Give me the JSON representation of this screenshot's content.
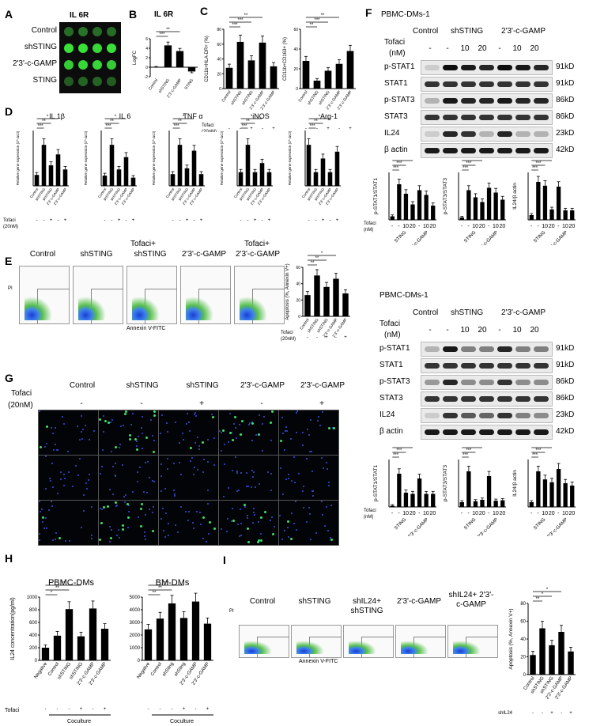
{
  "panels": {
    "A": {
      "letter": "A",
      "title": "IL 6R",
      "rows": [
        "Control",
        "shSTING",
        "2'3'-c-GAMP",
        "STING"
      ]
    },
    "B": {
      "letter": "B",
      "title": "IL 6R",
      "ylabel": "LogFC",
      "yticks": [
        "6",
        "4",
        "2",
        "0",
        "-2"
      ],
      "stars": [
        "***",
        "**",
        "*"
      ],
      "categories": [
        "Control",
        "shSTING",
        "2'3'-c-GAMP",
        "STING"
      ]
    },
    "C": {
      "letter": "C",
      "ylabel1": "CD11b+HLA-DR+ (%)",
      "ylabel2": "CD11b+CD163+ (%)",
      "yticks1": [
        "80",
        "60",
        "40",
        "20",
        "0"
      ],
      "yticks2": [
        "60",
        "40",
        "20",
        "0"
      ],
      "categories": [
        "Control",
        "shSTING",
        "shSTING",
        "2'3'-c-GAMP",
        "2'3'-c-GAMP"
      ],
      "tofaci": "Tofaci",
      "tofaci_dose": "(20nM)",
      "signs": [
        "-",
        "-",
        "+",
        "-",
        "+"
      ],
      "stars": [
        "***",
        "***",
        "**",
        "**",
        "***",
        "**",
        "*",
        "*"
      ]
    },
    "D": {
      "letter": "D",
      "titles": [
        "IL 1β",
        "IL 6",
        "TNF α",
        "iNOS",
        "Arg-1"
      ],
      "ylabel": "Relative gene expression (2^-ΔCt)",
      "categories": [
        "Control",
        "shSTING",
        "shSTING",
        "2'3'-c-GAMP",
        "2'3'-c-GAMP"
      ],
      "tofaci": "Tofaci",
      "tofaci_dose": "(20nM)",
      "signs": [
        "-",
        "-",
        "+",
        "-",
        "+"
      ]
    },
    "E": {
      "letter": "E",
      "groups": [
        "Control",
        "shSTING",
        "shSTING",
        "2'3'-c-GAMP",
        "2'3'-c-GAMP"
      ],
      "prefix": [
        "",
        "",
        "Tofaci+",
        "",
        "Tofaci+"
      ],
      "xlabel": "Annexin V-FITC",
      "ylabel": "PI",
      "bar_ylabel": "Apoptosis (%, Annexin V+)",
      "yticks": [
        "60",
        "40",
        "20",
        "0"
      ],
      "tofaci": "Tofaci",
      "tofaci_dose": "(20nM)",
      "signs": [
        "-",
        "-",
        "+",
        "-",
        "+"
      ]
    },
    "F": {
      "letter": "F",
      "block_title": "PBMC-DMs-1",
      "columns": [
        "Control",
        "shSTING",
        "2'3'-c-GAMP"
      ],
      "tofaci": "Tofaci",
      "unit": "(nM)",
      "doses": [
        "-",
        "-",
        "10",
        "20",
        "-",
        "10",
        "20"
      ],
      "bands": [
        "p-STAT1",
        "STAT1",
        "p-STAT3",
        "STAT3",
        "IL24",
        "β actin"
      ],
      "kd": [
        "91kD",
        "91kD",
        "86kD",
        "86kD",
        "23kD",
        "42kD"
      ],
      "bar_labels": [
        "p-STAT1/STAT1",
        "p-STAT3/STAT3",
        "IL24/β actin"
      ],
      "bar_groups": [
        "STING",
        "2'3'-c-GAMP"
      ],
      "bar_doses": [
        "-",
        "-",
        "10",
        "20",
        "-",
        "10",
        "20"
      ]
    },
    "G": {
      "letter": "G",
      "columns": [
        "Control",
        "shSTING",
        "shSTING",
        "2'3'-c-GAMP",
        "2'3'-c-GAMP"
      ],
      "tofaci": "Tofaci",
      "tofaci_dose": "(20nM)",
      "signs": [
        "-",
        "-",
        "+",
        "-",
        "+"
      ]
    },
    "H": {
      "letter": "H",
      "titles": [
        "PBMC-DMs",
        "BM-DMs"
      ],
      "ylabel": "IL24 concentration(pg/ml)",
      "yticks": [
        "1000",
        "800",
        "600",
        "400",
        "200",
        "0"
      ],
      "yticks2": [
        "5000",
        "4000",
        "3000",
        "2000",
        "1000",
        "0"
      ],
      "categories": [
        "Negative",
        "Control",
        "shSTING",
        "shSTING",
        "2'3'-c-GAMP",
        "2'3'-c-GAMP"
      ],
      "categories2": [
        "Negative",
        "Control",
        "shSting",
        "shSting",
        "2'3'-c-GAMP",
        "2'3'-c-GAMP"
      ],
      "tofaci": "Tofaci",
      "signs": [
        "-",
        "-",
        "-",
        "+",
        "-",
        "+"
      ],
      "coculture": "Coculture"
    },
    "I": {
      "letter": "I",
      "groups": [
        "Control",
        "shSTING",
        "shIL24+ shSTING",
        "2'3'-c-GAMP",
        "shIL24+ 2'3'-c-GAMP"
      ],
      "xlabel": "Annexin V-FITC",
      "ylabel": "PI",
      "bar_ylabel": "Apoptosis (%, Annexin V+)",
      "yticks": [
        "80",
        "60",
        "40",
        "20",
        "0"
      ],
      "shil24": "shIL24",
      "signs": [
        "-",
        "-",
        "+",
        "-",
        "+"
      ]
    }
  },
  "chart_data": [
    {
      "type": "bar",
      "panel": "B",
      "title": "IL 6R",
      "ylabel": "LogFC",
      "ylim": [
        -2,
        6
      ],
      "categories": [
        "Control",
        "shSTING",
        "2'3'-c-GAMP",
        "STING"
      ],
      "values": [
        0,
        4.6,
        3.4,
        -0.9
      ]
    },
    {
      "type": "bar",
      "panel": "C-left",
      "ylabel": "CD11b+HLA-DR+ (%)",
      "ylim": [
        0,
        80
      ],
      "categories": [
        "Control",
        "shSTING",
        "shSTING",
        "2'3'-c-GAMP",
        "2'3'-c-GAMP"
      ],
      "values": [
        28,
        63,
        38,
        62,
        30
      ]
    },
    {
      "type": "bar",
      "panel": "C-right",
      "ylabel": "CD11b+CD163+ (%)",
      "ylim": [
        0,
        60
      ],
      "categories": [
        "Control",
        "shSTING",
        "shSTING",
        "2'3'-c-GAMP",
        "2'3'-c-GAMP"
      ],
      "values": [
        28,
        8,
        18,
        25,
        38
      ]
    },
    {
      "type": "bar",
      "panel": "D-IL1b",
      "title": "IL 1β",
      "categories": [
        "Control",
        "shSTING",
        "shSTING",
        "2'3'-c-GAMP",
        "2'3'-c-GAMP"
      ],
      "values": [
        0.08,
        0.3,
        0.15,
        0.23,
        0.12
      ]
    },
    {
      "type": "bar",
      "panel": "D-IL6",
      "title": "IL 6",
      "categories": [
        "Control",
        "shSTING",
        "shSTING",
        "2'3'-c-GAMP",
        "2'3'-c-GAMP"
      ],
      "values": [
        0.05,
        0.2,
        0.08,
        0.14,
        0.04
      ]
    },
    {
      "type": "bar",
      "panel": "D-TNFa",
      "title": "TNF α",
      "categories": [
        "Control",
        "shSTING",
        "shSTING",
        "2'3'-c-GAMP",
        "2'3'-c-GAMP"
      ],
      "values": [
        0.02,
        0.07,
        0.03,
        0.06,
        0.02
      ]
    },
    {
      "type": "bar",
      "panel": "D-iNOS",
      "title": "iNOS",
      "categories": [
        "Control",
        "shSTING",
        "shSTING",
        "2'3'-c-GAMP",
        "2'3'-c-GAMP"
      ],
      "values": [
        0.03,
        0.09,
        0.03,
        0.05,
        0.03
      ]
    },
    {
      "type": "bar",
      "panel": "D-Arg1",
      "title": "Arg-1",
      "categories": [
        "Control",
        "shSTING",
        "shSTING",
        "2'3'-c-GAMP",
        "2'3'-c-GAMP"
      ],
      "values": [
        0.0006,
        0.0002,
        0.0004,
        0.0002,
        0.0005
      ]
    },
    {
      "type": "bar",
      "panel": "E-bar",
      "ylabel": "Apoptosis (%, Annexin V+)",
      "ylim": [
        0,
        60
      ],
      "categories": [
        "Control",
        "shSTING",
        "shSTING",
        "2'3'-c-GAMP",
        "2'3'-c-GAMP"
      ],
      "values": [
        26,
        50,
        36,
        46,
        28
      ]
    },
    {
      "type": "bar",
      "panel": "F-top-pSTAT1",
      "ylabel": "p-STAT1/STAT1",
      "ylim": [
        0,
        4
      ],
      "categories": [
        "-",
        "-",
        "10",
        "20",
        "-",
        "10",
        "20"
      ],
      "values": [
        0.3,
        3.0,
        2.2,
        1.3,
        2.5,
        2.1,
        1.2
      ]
    },
    {
      "type": "bar",
      "panel": "F-top-pSTAT3",
      "ylabel": "p-STAT3/STAT3",
      "ylim": [
        0,
        2
      ],
      "categories": [
        "-",
        "-",
        "10",
        "20",
        "-",
        "10",
        "20"
      ],
      "values": [
        0.1,
        1.25,
        0.95,
        0.75,
        1.35,
        1.15,
        0.85
      ]
    },
    {
      "type": "bar",
      "panel": "F-top-IL24",
      "ylabel": "IL24/β actin",
      "ylim": [
        0,
        1.0
      ],
      "categories": [
        "-",
        "-",
        "10",
        "20",
        "-",
        "10",
        "20"
      ],
      "values": [
        0.1,
        0.8,
        0.72,
        0.22,
        0.7,
        0.2,
        0.2
      ]
    },
    {
      "type": "bar",
      "panel": "F-bottom-pSTAT1",
      "ylabel": "p-STAT1/STAT1",
      "ylim": [
        0,
        4
      ],
      "categories": [
        "-",
        "-",
        "10",
        "20",
        "-",
        "10",
        "20"
      ],
      "values": [
        0.1,
        2.8,
        1.2,
        1.1,
        2.4,
        1.1,
        1.1
      ]
    },
    {
      "type": "bar",
      "panel": "F-bottom-pSTAT3",
      "ylabel": "p-STAT3/STAT3",
      "ylim": [
        0,
        1.0
      ],
      "categories": [
        "-",
        "-",
        "10",
        "20",
        "-",
        "10",
        "20"
      ],
      "values": [
        0.1,
        0.75,
        0.12,
        0.15,
        0.65,
        0.13,
        0.14
      ]
    },
    {
      "type": "bar",
      "panel": "F-bottom-IL24",
      "ylabel": "IL24/β actin",
      "ylim": [
        0,
        1.0
      ],
      "categories": [
        "-",
        "-",
        "10",
        "20",
        "-",
        "10",
        "20"
      ],
      "values": [
        0.1,
        0.75,
        0.58,
        0.52,
        0.8,
        0.5,
        0.45
      ]
    },
    {
      "type": "bar",
      "panel": "H-PBMC",
      "title": "PBMC-DMs",
      "ylabel": "IL24 concentration(pg/ml)",
      "ylim": [
        0,
        1000
      ],
      "categories": [
        "Negative",
        "Control",
        "shSTING",
        "shSTING",
        "2'3'-c-GAMP",
        "2'3'-c-GAMP"
      ],
      "values": [
        200,
        390,
        810,
        380,
        820,
        500
      ]
    },
    {
      "type": "bar",
      "panel": "H-BM",
      "title": "BM-DMs",
      "ylim": [
        0,
        5000
      ],
      "categories": [
        "Negative",
        "Control",
        "shSting",
        "shSting",
        "2'3'-c-GAMP",
        "2'3'-c-GAMP"
      ],
      "values": [
        2450,
        3300,
        4500,
        3350,
        4650,
        2900
      ]
    },
    {
      "type": "bar",
      "panel": "I-bar",
      "ylabel": "Apoptosis (%, Annexin V+)",
      "ylim": [
        0,
        80
      ],
      "categories": [
        "Control",
        "shSTING",
        "shIL24+shSTING",
        "2'3'-c-GAMP",
        "shIL24+2'3'-c-GAMP"
      ],
      "values": [
        22,
        52,
        33,
        48,
        26
      ]
    }
  ]
}
